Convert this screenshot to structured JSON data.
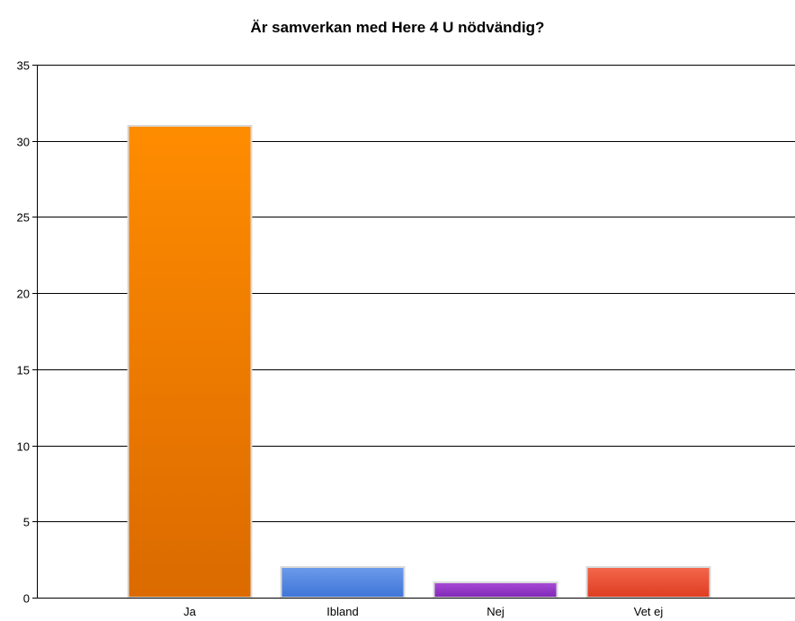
{
  "chart_data": {
    "type": "bar",
    "title": "Är samverkan med Here 4 U nödvändig?",
    "categories": [
      "Ja",
      "Ibland",
      "Nej",
      "Vet ej"
    ],
    "values": [
      31,
      2,
      1,
      2
    ],
    "xlabel": "",
    "ylabel": "",
    "ylim": [
      0,
      35
    ],
    "yticks": [
      "0",
      "5",
      "10",
      "15",
      "20",
      "25",
      "30",
      "35"
    ],
    "grid": true,
    "legend": "none",
    "bar_colors": [
      {
        "top": "#ff8c00",
        "bottom": "#db6a00"
      },
      {
        "top": "#6b9bea",
        "bottom": "#3f74d8"
      },
      {
        "top": "#a94cd8",
        "bottom": "#7e26b4"
      },
      {
        "top": "#f4674a",
        "bottom": "#de3c22"
      }
    ]
  }
}
